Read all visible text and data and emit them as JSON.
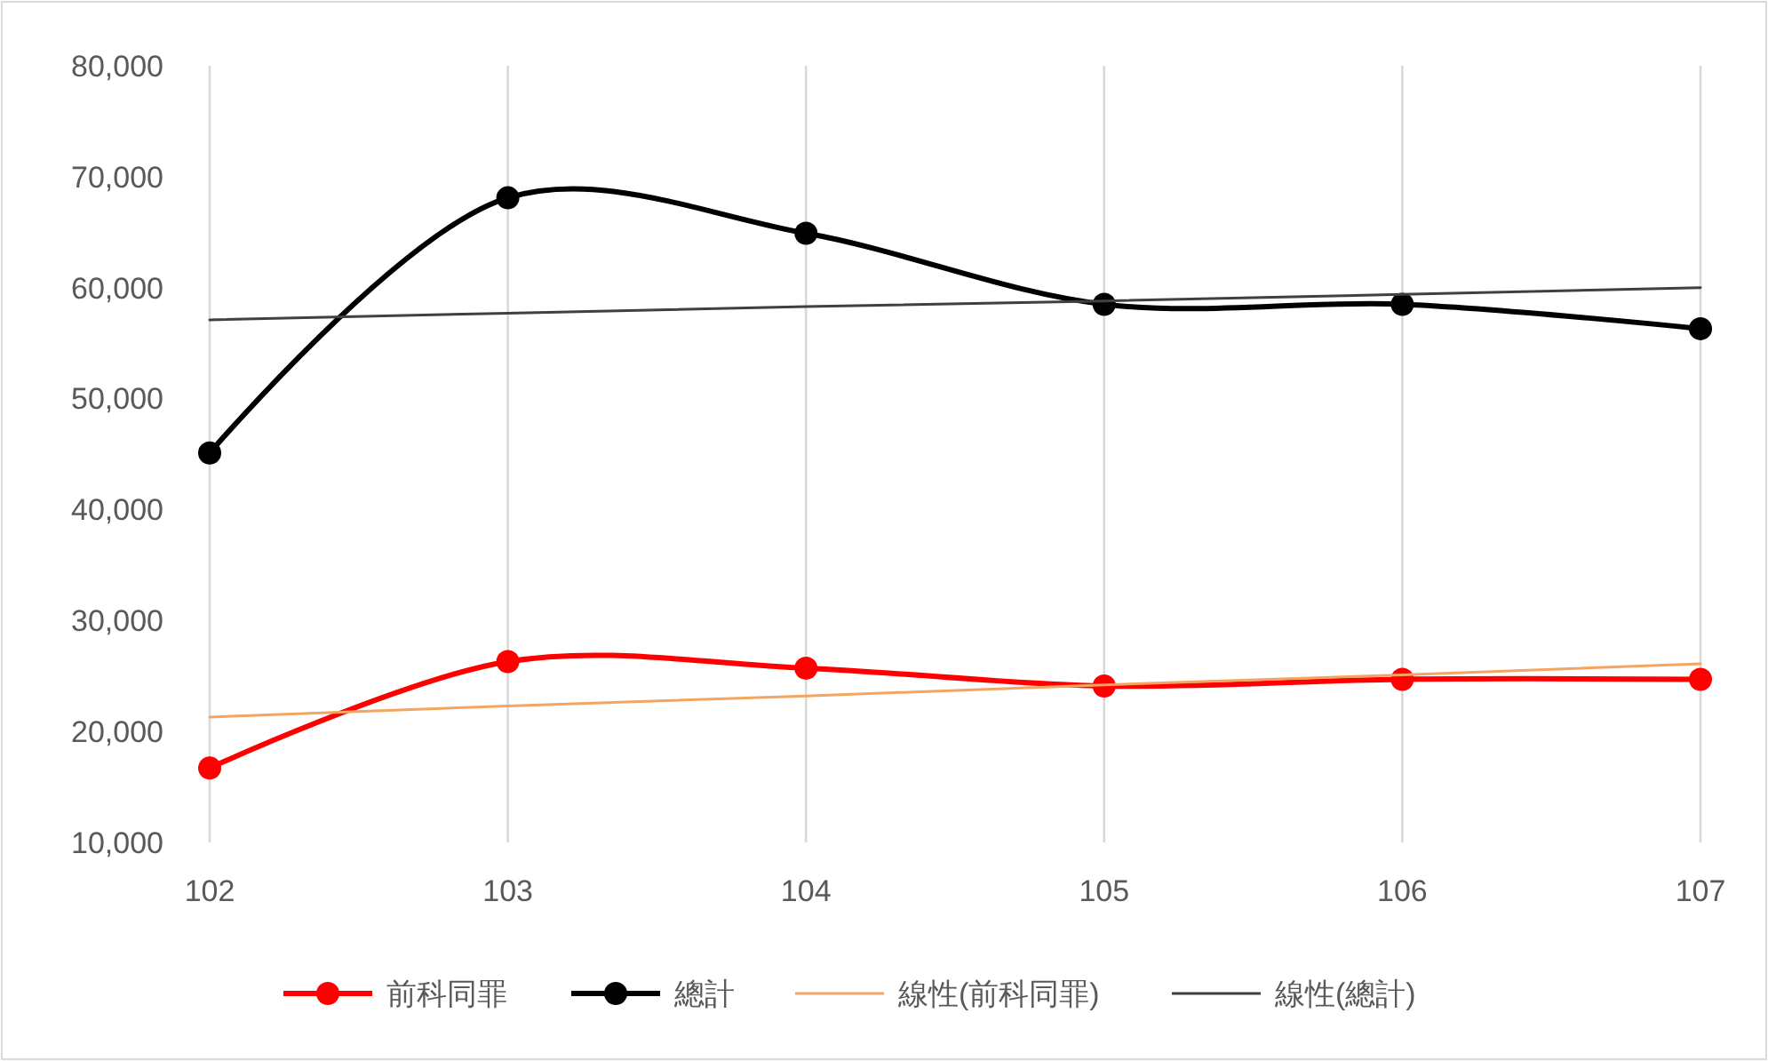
{
  "chart_data": {
    "type": "line",
    "x": [
      102,
      103,
      104,
      105,
      106,
      107
    ],
    "xlim": [
      102,
      107
    ],
    "xticks": [
      102,
      103,
      104,
      105,
      106,
      107
    ],
    "ylim": [
      10000,
      80000
    ],
    "yticks": [
      {
        "value": 10000,
        "label": "10,000"
      },
      {
        "value": 20000,
        "label": "20,000"
      },
      {
        "value": 30000,
        "label": "30,000"
      },
      {
        "value": 40000,
        "label": "40,000"
      },
      {
        "value": 50000,
        "label": "50,000"
      },
      {
        "value": 60000,
        "label": "60,000"
      },
      {
        "value": 70000,
        "label": "70,000"
      },
      {
        "value": 80000,
        "label": "80,000"
      }
    ],
    "grid": "x",
    "legend": "bottom",
    "series": [
      {
        "name": "前科同罪",
        "color": "#ff0000",
        "marker": "circle",
        "values": [
          16700,
          26300,
          25700,
          24100,
          24700,
          24700
        ]
      },
      {
        "name": "總計",
        "color": "#000000",
        "marker": "circle",
        "values": [
          45100,
          68100,
          64900,
          58500,
          58500,
          56300
        ]
      },
      {
        "name": "線性(前科同罪)",
        "color": "#f4a460",
        "marker": "none",
        "values": [
          21300,
          22300,
          23200,
          24200,
          25100,
          26100
        ]
      },
      {
        "name": "線性(總計)",
        "color": "#404040",
        "marker": "none",
        "values": [
          57100,
          57700,
          58300,
          58800,
          59400,
          60000
        ]
      }
    ]
  }
}
